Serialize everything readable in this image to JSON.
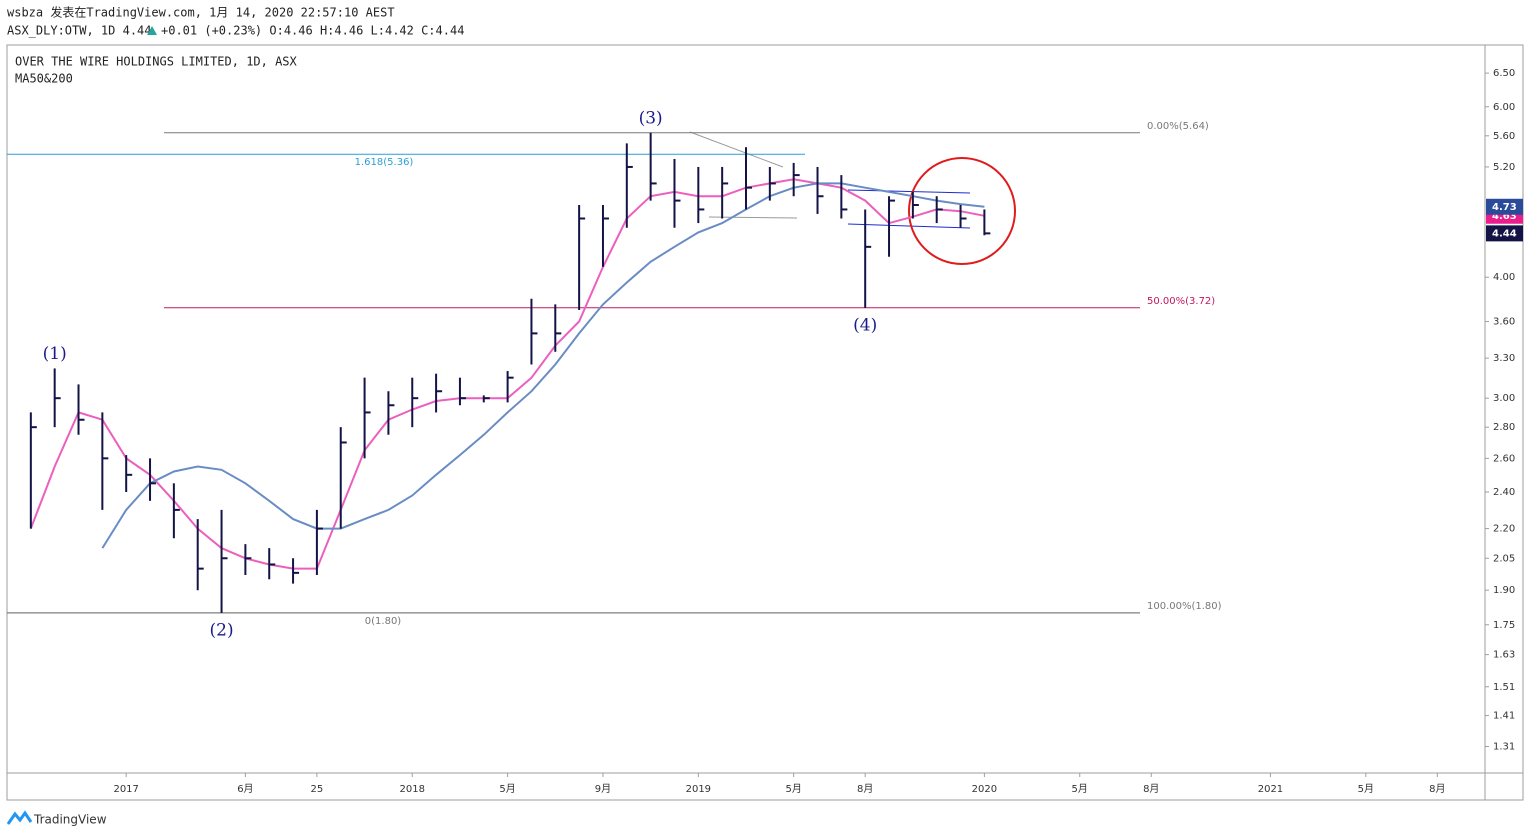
{
  "header": {
    "publisher": "wsbza 发表在TradingView.com, 1月 14, 2020 22:57:10 AEST",
    "quote": "ASX_DLY:OTW, 1D 4.44",
    "change": "+0.01 (+0.23%) O:4.46 H:4.46 L:4.42 C:4.44",
    "logo": "TradingView"
  },
  "chart_data": {
    "type": "ohlc",
    "title": "OVER THE WIRE HOLDINGS LIMITED, 1D, ASX",
    "subtitle": "MA50&200",
    "log_scale": true,
    "grid": false,
    "x": [
      "2016-09",
      "2016-10",
      "2016-11",
      "2016-12",
      "2017-01",
      "2017-02",
      "2017-03",
      "2017-04",
      "2017-05",
      "2017-06",
      "2017-07",
      "2017-08",
      "2017-09",
      "2017-10",
      "2017-11",
      "2017-12",
      "2018-01",
      "2018-02",
      "2018-03",
      "2018-04",
      "2018-05",
      "2018-06",
      "2018-07",
      "2018-08",
      "2018-09",
      "2018-10",
      "2018-11",
      "2018-12",
      "2019-01",
      "2019-02",
      "2019-03",
      "2019-04",
      "2019-05",
      "2019-06",
      "2019-07",
      "2019-08",
      "2019-09",
      "2019-10",
      "2019-11",
      "2019-12",
      "2020-01"
    ],
    "series": [
      {
        "color": "#131346",
        "high": [
          2.9,
          3.22,
          3.1,
          2.9,
          2.62,
          2.6,
          2.45,
          2.25,
          2.3,
          2.12,
          2.1,
          2.05,
          2.3,
          2.8,
          3.15,
          3.05,
          3.15,
          3.18,
          3.15,
          3.02,
          3.2,
          3.8,
          3.75,
          4.75,
          4.75,
          5.5,
          5.64,
          5.3,
          5.2,
          5.2,
          5.45,
          5.2,
          5.25,
          5.2,
          5.1,
          4.7,
          4.85,
          4.9,
          4.85,
          4.75,
          4.7
        ],
        "low": [
          2.2,
          2.8,
          2.75,
          2.3,
          2.4,
          2.35,
          2.15,
          1.9,
          1.8,
          1.97,
          1.95,
          1.93,
          1.97,
          2.2,
          2.6,
          2.75,
          2.8,
          2.9,
          2.95,
          2.97,
          2.97,
          3.25,
          3.35,
          3.7,
          4.1,
          4.5,
          4.8,
          4.5,
          4.55,
          4.6,
          4.7,
          4.8,
          4.85,
          4.65,
          4.6,
          3.72,
          4.2,
          4.6,
          4.55,
          4.5,
          4.42
        ],
        "values": [
          2.8,
          3.0,
          2.85,
          2.6,
          2.5,
          2.45,
          2.3,
          2.0,
          2.05,
          2.05,
          2.02,
          1.98,
          2.2,
          2.7,
          2.9,
          2.95,
          3.0,
          3.05,
          3.0,
          3.0,
          3.15,
          3.5,
          3.5,
          4.6,
          4.6,
          5.2,
          5.0,
          4.8,
          4.7,
          5.0,
          4.95,
          5.0,
          5.1,
          4.85,
          4.7,
          4.3,
          4.8,
          4.75,
          4.7,
          4.6,
          4.44
        ]
      },
      {
        "kind": "line",
        "color": "#ec5fbf",
        "values": [
          2.2,
          2.55,
          2.9,
          2.85,
          2.6,
          2.5,
          2.35,
          2.2,
          2.1,
          2.05,
          2.02,
          2.0,
          2.0,
          2.3,
          2.65,
          2.85,
          2.92,
          2.98,
          3.0,
          3.0,
          3.0,
          3.15,
          3.4,
          3.6,
          4.1,
          4.6,
          4.85,
          4.9,
          4.85,
          4.85,
          4.95,
          5.0,
          5.05,
          5.0,
          4.95,
          4.8,
          4.55,
          4.62,
          4.7,
          4.68,
          4.63
        ]
      },
      {
        "kind": "line",
        "color": "#6a8cc4",
        "values": [
          null,
          null,
          null,
          2.1,
          2.3,
          2.45,
          2.52,
          2.55,
          2.53,
          2.45,
          2.35,
          2.25,
          2.2,
          2.2,
          2.25,
          2.3,
          2.38,
          2.5,
          2.62,
          2.75,
          2.9,
          3.05,
          3.25,
          3.5,
          3.75,
          3.95,
          4.15,
          4.3,
          4.45,
          4.55,
          4.7,
          4.85,
          4.95,
          5.0,
          5.0,
          4.95,
          4.9,
          4.85,
          4.8,
          4.76,
          4.73
        ]
      }
    ],
    "badge_colors": [
      "#131346",
      "#e91e8c",
      "#2a4a9a"
    ],
    "levels": [
      {
        "value": 5.64,
        "label": "0.00%(5.64)",
        "color": "#787878"
      },
      {
        "value": 5.36,
        "label": "1.618(5.36)",
        "color": "#2a9fd6"
      },
      {
        "value": 3.72,
        "label": "50.00%(3.72)",
        "color": "#c2185b"
      },
      {
        "value": 1.8,
        "label": "100.00%(1.80)",
        "color": "#787878"
      },
      {
        "value": 1.8,
        "label": "0(1.80)",
        "color": "#787878"
      }
    ],
    "annotations": [
      {
        "text": "(1)",
        "x": "2016-10",
        "y": 3.22,
        "placement": "above"
      },
      {
        "text": "(2)",
        "x": "2017-05",
        "y": 1.8,
        "placement": "below"
      },
      {
        "text": "(3)",
        "x": "2018-11",
        "y": 5.64,
        "placement": "above"
      },
      {
        "text": "(4)",
        "x": "2019-08",
        "y": 3.72,
        "placement": "below"
      }
    ],
    "xlim": [
      "2016-08",
      "2021-10"
    ],
    "xticks": [
      {
        "value": "2017-01",
        "label": "2017"
      },
      {
        "value": "2017-06",
        "label": "6月"
      },
      {
        "value": "2017-09",
        "label": "25"
      },
      {
        "value": "2018-01",
        "label": "2018"
      },
      {
        "value": "2018-05",
        "label": "5月"
      },
      {
        "value": "2018-09",
        "label": "9月"
      },
      {
        "value": "2019-01",
        "label": "2019"
      },
      {
        "value": "2019-05",
        "label": "5月"
      },
      {
        "value": "2019-08",
        "label": "8月"
      },
      {
        "value": "2020-01",
        "label": "2020"
      },
      {
        "value": "2020-05",
        "label": "5月"
      },
      {
        "value": "2020-08",
        "label": "8月"
      },
      {
        "value": "2021-01",
        "label": "2021"
      },
      {
        "value": "2021-05",
        "label": "5月"
      },
      {
        "value": "2021-08",
        "label": "8月"
      }
    ],
    "ylim": [
      1.23,
      6.95
    ],
    "yticks": [
      1.31,
      1.41,
      1.51,
      1.63,
      1.75,
      {
        "value": 1.9,
        "label": "1.90"
      },
      2.05,
      {
        "value": 2.2,
        "label": "2.20"
      },
      {
        "value": 2.4,
        "label": "2.40"
      },
      {
        "value": 2.6,
        "label": "2.60"
      },
      {
        "value": 2.8,
        "label": "2.80"
      },
      {
        "value": 3,
        "label": "3.00"
      },
      {
        "value": 3.3,
        "label": "3.30"
      },
      {
        "value": 3.6,
        "label": "3.60"
      },
      {
        "value": 4,
        "label": "4.00"
      },
      {
        "value": 5.2,
        "label": "5.20"
      },
      {
        "value": 5.6,
        "label": "5.60"
      },
      {
        "value": 6,
        "label": "6.00"
      },
      {
        "value": 6.5,
        "label": "6.50"
      }
    ]
  }
}
